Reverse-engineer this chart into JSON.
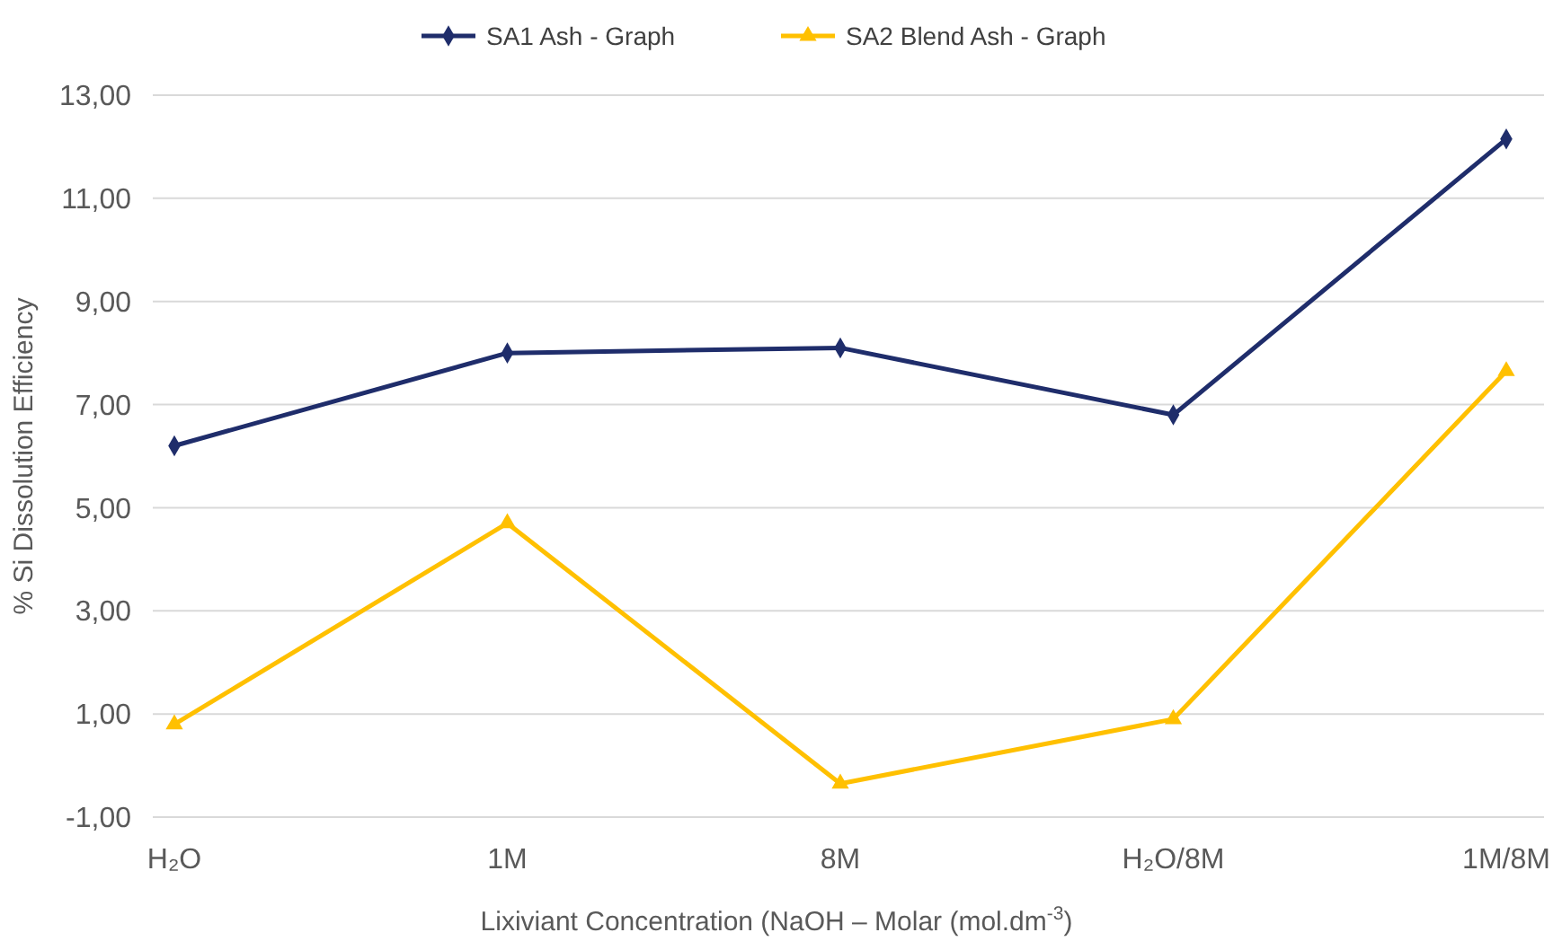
{
  "chart_data": {
    "type": "line",
    "categories": [
      "H₂O",
      "1M",
      "8M",
      "H₂O/8M",
      "1M/8M"
    ],
    "series": [
      {
        "name": "SA1 Ash - Graph",
        "color": "#1f2d6b",
        "marker": "diamond",
        "values": [
          6.2,
          8.0,
          8.1,
          6.8,
          12.15
        ]
      },
      {
        "name": "SA2 Blend  Ash - Graph",
        "color": "#ffc000",
        "marker": "triangle",
        "values": [
          0.8,
          4.7,
          -0.35,
          0.9,
          7.65
        ]
      }
    ],
    "ylim": [
      -1,
      13
    ],
    "yticks": [
      {
        "value": -1,
        "label": "-1,00"
      },
      {
        "value": 1,
        "label": "1,00"
      },
      {
        "value": 3,
        "label": "3,00"
      },
      {
        "value": 5,
        "label": "5,00"
      },
      {
        "value": 7,
        "label": "7,00"
      },
      {
        "value": 9,
        "label": "9,00"
      },
      {
        "value": 11,
        "label": "11,00"
      },
      {
        "value": 13,
        "label": "13,00"
      }
    ],
    "xlabel": "Lixiviant  Concentration (NaOH – Molar (mol.dm$^{-3}$)",
    "ylabel": "% Si Dissolution Efficiency",
    "grid": "y",
    "legend": "top",
    "line_style": "solid"
  }
}
